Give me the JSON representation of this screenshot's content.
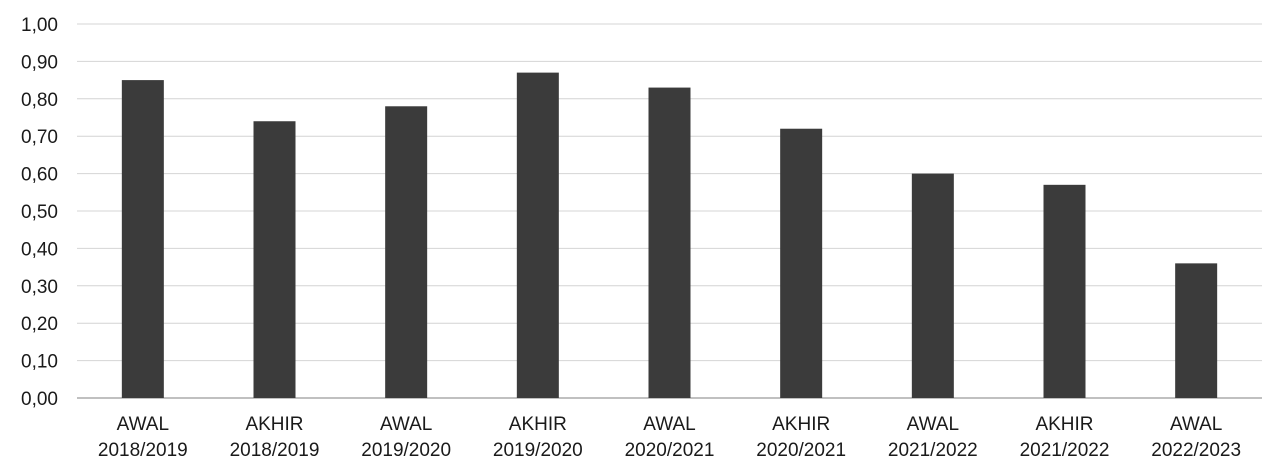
{
  "chart_data": {
    "type": "bar",
    "categories": [
      [
        "AWAL",
        "2018/2019"
      ],
      [
        "AKHIR",
        "2018/2019"
      ],
      [
        "AWAL",
        "2019/2020"
      ],
      [
        "AKHIR",
        "2019/2020"
      ],
      [
        "AWAL",
        "2020/2021"
      ],
      [
        "AKHIR",
        "2020/2021"
      ],
      [
        "AWAL",
        "2021/2022"
      ],
      [
        "AKHIR",
        "2021/2022"
      ],
      [
        "AWAL",
        "2022/2023"
      ]
    ],
    "values": [
      0.85,
      0.74,
      0.78,
      0.87,
      0.83,
      0.72,
      0.6,
      0.57,
      0.36
    ],
    "title": "",
    "xlabel": "",
    "ylabel": "",
    "ylim": [
      0,
      1.0
    ],
    "y_ticks": [
      "0,00",
      "0,10",
      "0,20",
      "0,30",
      "0,40",
      "0,50",
      "0,60",
      "0,70",
      "0,80",
      "0,90",
      "1,00"
    ],
    "grid": true,
    "legend": "none",
    "bar_color": "#3b3b3b"
  }
}
